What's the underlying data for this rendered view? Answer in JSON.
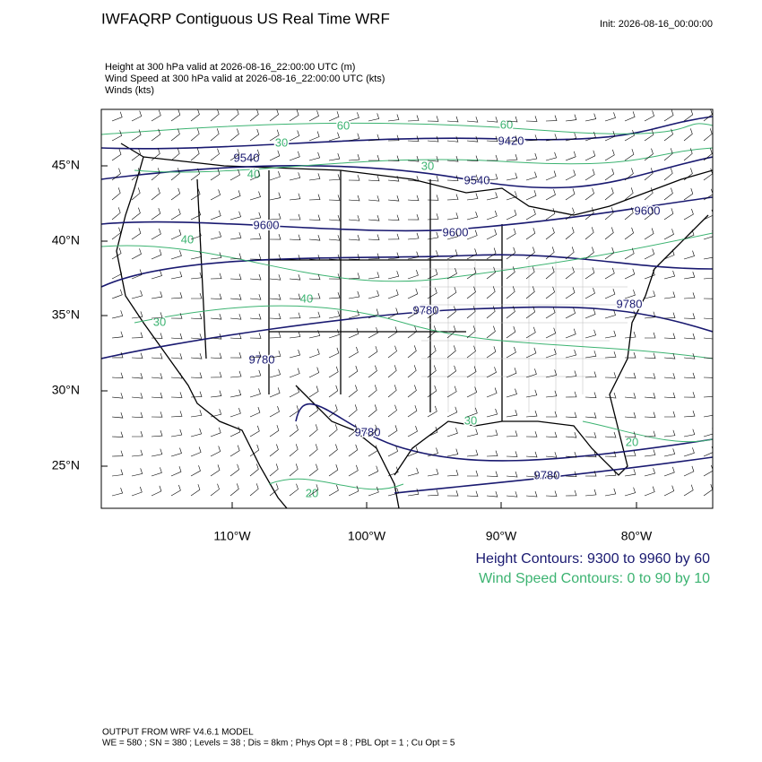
{
  "header": {
    "title": "IWFAQRP Contiguous US Real Time WRF",
    "init": "Init: 2026-08-16_00:00:00",
    "fields": [
      "Height at 300 hPa valid at 2026-08-16_22:00:00 UTC   (m)",
      "Wind Speed at 300 hPa valid at 2026-08-16_22:00:00 UTC   (kts)",
      "Winds   (kts)"
    ]
  },
  "map": {
    "lat_labels": [
      "45°N",
      "40°N",
      "35°N",
      "30°N",
      "25°N"
    ],
    "lon_labels": [
      "110°W",
      "100°W",
      "90°W",
      "80°W"
    ],
    "height_labels": [
      "9540",
      "9420",
      "9540",
      "9600",
      "9600",
      "9600",
      "9780",
      "9780",
      "9780",
      "9780",
      "9780"
    ],
    "wind_labels": [
      "60",
      "60",
      "30",
      "40",
      "30",
      "40",
      "40",
      "30",
      "20",
      "20",
      "30"
    ]
  },
  "legend": [
    "Height Contours: 9300 to 9960 by 60",
    "Wind Speed Contours: 0 to 90 by 10"
  ],
  "footer": [
    "OUTPUT FROM WRF V4.6.1 MODEL",
    "WE = 580 ; SN = 380 ; Levels = 38 ; Dis = 8km ; Phys Opt = 8 ; PBL Opt = 1 ; Cu Opt = 5"
  ]
}
